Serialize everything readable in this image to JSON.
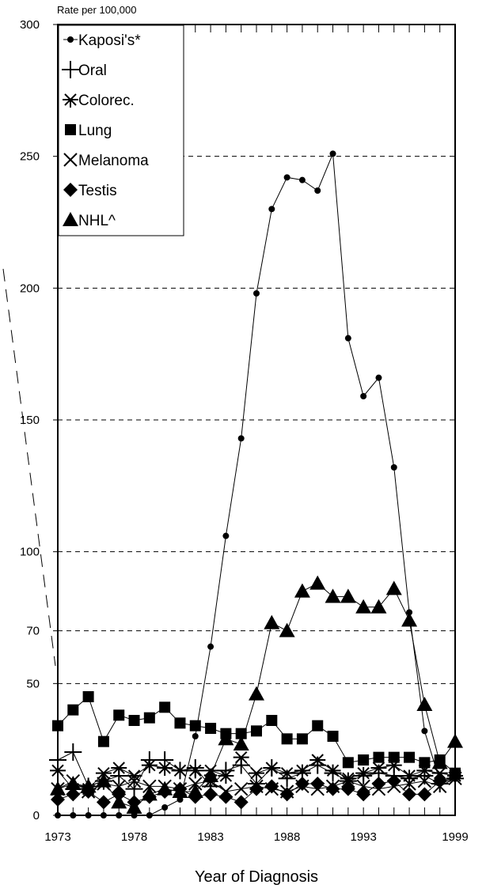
{
  "chart_data": {
    "type": "line",
    "ylabel": "Rate per 100,000",
    "xlabel": "Year of Diagnosis",
    "ylim": [
      0,
      300
    ],
    "xlim": [
      1973,
      1999
    ],
    "ytick_labels": [
      "0",
      "50",
      "70",
      "100",
      "150",
      "200",
      "250",
      "300"
    ],
    "ytick_values": [
      0,
      50,
      70,
      100,
      150,
      200,
      250,
      300
    ],
    "xtick_labels": [
      "1973",
      "1978",
      "1983",
      "1988",
      "1993",
      "1999"
    ],
    "xtick_values": [
      1973,
      1978,
      1983,
      1988,
      1993,
      1999
    ],
    "gridlines": [
      50,
      70,
      100,
      150,
      200,
      250
    ],
    "grid": "dashed horizontal",
    "legend_position": "top-left",
    "axis_break": "diagonal dashed break marks on left of y-axis",
    "x": [
      1973,
      1974,
      1975,
      1976,
      1977,
      1978,
      1979,
      1980,
      1981,
      1982,
      1983,
      1984,
      1985,
      1986,
      1987,
      1988,
      1989,
      1990,
      1991,
      1992,
      1993,
      1994,
      1995,
      1996,
      1997,
      1998,
      1999
    ],
    "series": [
      {
        "name": "Kaposi's*",
        "marker": "dot",
        "values": [
          0,
          0,
          0,
          0,
          0,
          0,
          0,
          3,
          6,
          30,
          64,
          106,
          143,
          198,
          230,
          242,
          241,
          237,
          251,
          181,
          159,
          166,
          132,
          77,
          32,
          13,
          14
        ]
      },
      {
        "name": "Oral",
        "marker": "plus",
        "values": [
          21,
          24,
          11,
          13,
          15,
          10,
          21,
          21,
          17,
          18,
          11,
          17,
          19,
          12,
          18,
          14,
          16,
          19,
          16,
          13,
          15,
          16,
          15,
          14,
          15,
          12,
          14
        ]
      },
      {
        "name": "Colorec.",
        "marker": "asterisk",
        "values": [
          17,
          10,
          10,
          16,
          18,
          15,
          19,
          18,
          17,
          17,
          17,
          15,
          22,
          16,
          18,
          16,
          17,
          21,
          17,
          14,
          16,
          18,
          19,
          15,
          17,
          16,
          15
        ]
      },
      {
        "name": "Lung",
        "marker": "square",
        "values": [
          34,
          40,
          45,
          28,
          38,
          36,
          37,
          41,
          35,
          34,
          33,
          31,
          31,
          32,
          36,
          29,
          29,
          34,
          30,
          20,
          21,
          22,
          22,
          22,
          20,
          21,
          16
        ]
      },
      {
        "name": "Melanoma",
        "marker": "x",
        "values": [
          10,
          13,
          9,
          12,
          11,
          13,
          11,
          11,
          10,
          12,
          13,
          9,
          10,
          11,
          10,
          9,
          11,
          10,
          11,
          13,
          11,
          10,
          11,
          12,
          13,
          11,
          14
        ]
      },
      {
        "name": "Testis",
        "marker": "diamond",
        "values": [
          6,
          8,
          9,
          5,
          8,
          5,
          7,
          9,
          10,
          7,
          8,
          7,
          5,
          10,
          11,
          8,
          12,
          12,
          10,
          10,
          8,
          12,
          13,
          8,
          8,
          13,
          15
        ]
      },
      {
        "name": "NHL^",
        "marker": "triangle",
        "values": [
          10,
          12,
          11,
          13,
          5,
          3,
          8,
          10,
          9,
          9,
          15,
          29,
          27,
          46,
          73,
          70,
          85,
          88,
          83,
          83,
          79,
          79,
          86,
          74,
          42,
          20,
          28
        ]
      }
    ]
  }
}
